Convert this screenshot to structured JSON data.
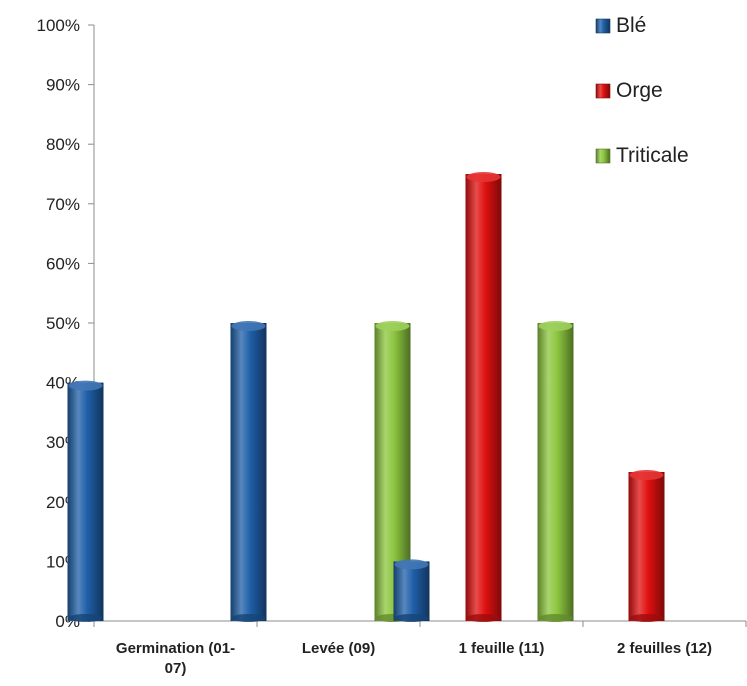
{
  "chart_data": {
    "type": "bar",
    "categories": [
      "Germination (01-07)",
      "Levée (09)",
      "1 feuille (11)",
      "2 feuilles (12)"
    ],
    "category_lines": [
      [
        "Germination (01-",
        "07)"
      ],
      [
        "Levée (09)"
      ],
      [
        "1 feuille (11)"
      ],
      [
        "2 feuilles (12)"
      ]
    ],
    "series": [
      {
        "name": "Blé",
        "color": "#1f5fa8",
        "values": [
          40,
          50,
          10,
          0
        ]
      },
      {
        "name": "Orge",
        "color": "#e01010",
        "values": [
          0,
          0,
          75,
          25
        ]
      },
      {
        "name": "Triticale",
        "color": "#8cc63f",
        "values": [
          0,
          50,
          50,
          0
        ]
      }
    ],
    "ylim": [
      0,
      100
    ],
    "yticks": [
      "0%",
      "10%",
      "20%",
      "30%",
      "40%",
      "50%",
      "60%",
      "70%",
      "80%",
      "90%",
      "100%"
    ],
    "grid": false,
    "legend_position": "top-right",
    "title": "",
    "xlabel": "",
    "ylabel": ""
  }
}
